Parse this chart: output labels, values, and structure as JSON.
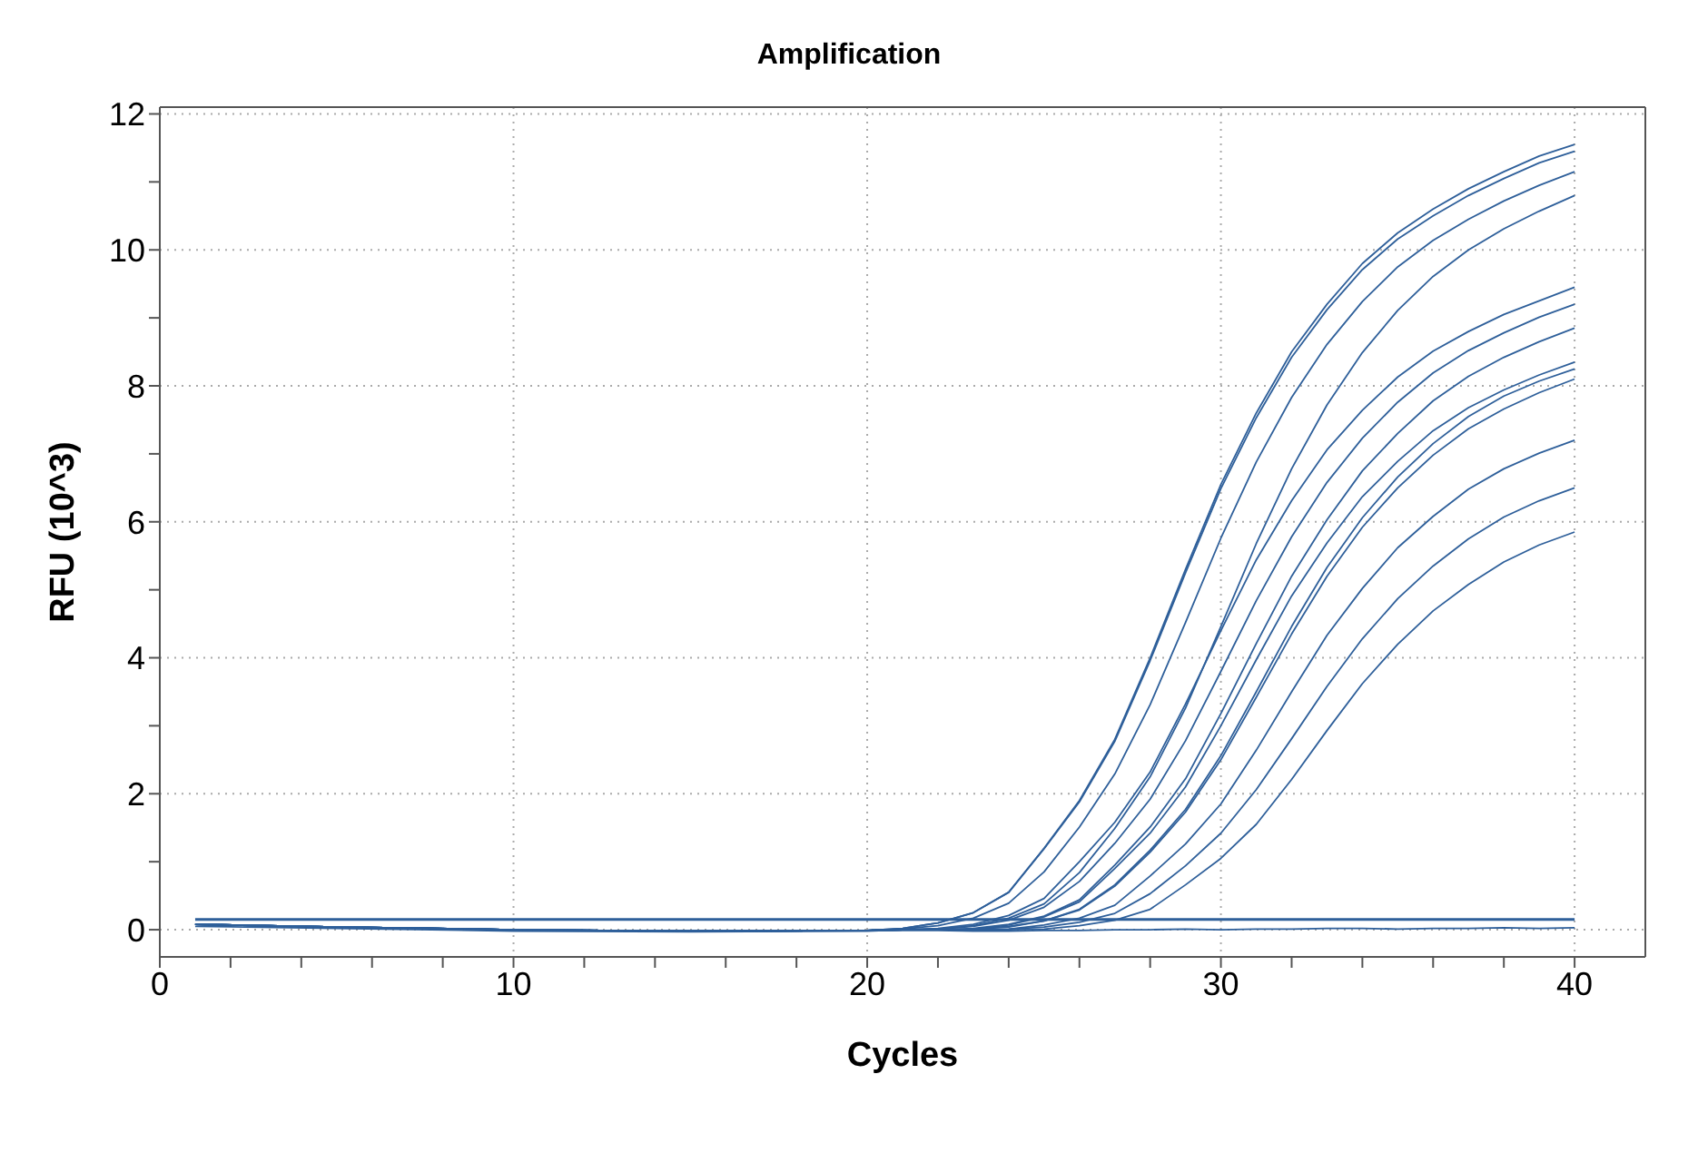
{
  "chart_data": {
    "type": "line",
    "title": "Amplification",
    "xlabel": "Cycles",
    "ylabel": "RFU (10^3)",
    "x": [
      1,
      5,
      10,
      15,
      20,
      21,
      22,
      23,
      24,
      25,
      26,
      27,
      28,
      29,
      30,
      31,
      32,
      33,
      34,
      35,
      36,
      37,
      38,
      39,
      40
    ],
    "xlim": [
      0,
      42
    ],
    "xticks": [
      0,
      {
        "value": 2,
        "label": null
      },
      {
        "value": 4,
        "label": null
      },
      {
        "value": 6,
        "label": null
      },
      {
        "value": 8,
        "label": null
      },
      10,
      {
        "value": 12,
        "label": null
      },
      {
        "value": 14,
        "label": null
      },
      {
        "value": 16,
        "label": null
      },
      {
        "value": 18,
        "label": null
      },
      20,
      {
        "value": 22,
        "label": null
      },
      {
        "value": 24,
        "label": null
      },
      {
        "value": 26,
        "label": null
      },
      {
        "value": 28,
        "label": null
      },
      30,
      {
        "value": 32,
        "label": null
      },
      {
        "value": 34,
        "label": null
      },
      {
        "value": 36,
        "label": null
      },
      {
        "value": 38,
        "label": null
      },
      40
    ],
    "ylim": [
      -0.4,
      12.1
    ],
    "yticks": [
      0,
      {
        "value": 1,
        "label": null
      },
      2,
      {
        "value": 3,
        "label": null
      },
      4,
      {
        "value": 5,
        "label": null
      },
      6,
      {
        "value": 7,
        "label": null
      },
      8,
      {
        "value": 9,
        "label": null
      },
      10,
      {
        "value": 11,
        "label": null
      },
      12
    ],
    "grid": true,
    "line_style": "solid",
    "ref_lines": [
      {
        "axis": "y",
        "value": 0.15,
        "color": "#2e5f9a"
      }
    ],
    "series": [
      {
        "color": "#2e5f9a",
        "values": [
          0.08,
          0.04,
          0.0,
          -0.02,
          -0.01,
          0.02,
          0.1,
          0.25,
          0.55,
          1.2,
          1.9,
          2.8,
          4.0,
          5.3,
          6.55,
          7.6,
          8.5,
          9.2,
          9.8,
          10.25,
          10.6,
          10.9,
          11.15,
          11.38,
          11.55
        ]
      },
      {
        "color": "#2e5f9a",
        "values": [
          0.08,
          0.04,
          0.0,
          -0.02,
          -0.01,
          0.02,
          0.1,
          0.25,
          0.55,
          1.19,
          1.88,
          2.77,
          3.96,
          5.25,
          6.49,
          7.53,
          8.42,
          9.12,
          9.71,
          10.16,
          10.5,
          10.8,
          11.05,
          11.28,
          11.45
        ]
      },
      {
        "color": "#2e5f9a",
        "values": [
          0.08,
          0.04,
          0.0,
          -0.02,
          -0.01,
          0.01,
          0.06,
          0.17,
          0.39,
          0.85,
          1.51,
          2.29,
          3.31,
          4.52,
          5.76,
          6.88,
          7.83,
          8.61,
          9.24,
          9.75,
          10.14,
          10.45,
          10.72,
          10.95,
          11.15
        ]
      },
      {
        "color": "#2e5f9a",
        "values": [
          0.08,
          0.04,
          0.0,
          -0.02,
          -0.01,
          0.0,
          0.01,
          0.06,
          0.17,
          0.38,
          0.84,
          1.49,
          2.25,
          3.26,
          4.46,
          5.68,
          6.78,
          7.72,
          8.49,
          9.11,
          9.61,
          10.0,
          10.31,
          10.57,
          10.8
        ]
      },
      {
        "color": "#2e5f9a",
        "values": [
          0.08,
          0.04,
          0.0,
          -0.02,
          -0.01,
          0.0,
          0.02,
          0.08,
          0.21,
          0.46,
          1.0,
          1.58,
          2.32,
          3.32,
          4.4,
          5.44,
          6.31,
          7.06,
          7.64,
          8.13,
          8.51,
          8.8,
          9.05,
          9.25,
          9.45
        ]
      },
      {
        "color": "#2e5f9a",
        "values": [
          0.08,
          0.04,
          0.0,
          -0.02,
          -0.01,
          0.0,
          0.01,
          0.05,
          0.14,
          0.33,
          0.71,
          1.27,
          1.92,
          2.78,
          3.8,
          4.84,
          5.78,
          6.58,
          7.23,
          7.76,
          8.19,
          8.52,
          8.78,
          9.01,
          9.2
        ]
      },
      {
        "color": "#2e5f9a",
        "values": [
          0.08,
          0.04,
          0.0,
          -0.02,
          -0.01,
          0.0,
          0.0,
          0.02,
          0.08,
          0.2,
          0.44,
          0.95,
          1.51,
          2.22,
          3.18,
          4.21,
          5.2,
          6.03,
          6.75,
          7.3,
          7.78,
          8.14,
          8.42,
          8.65,
          8.85
        ]
      },
      {
        "color": "#2e5f9a",
        "values": [
          0.08,
          0.04,
          0.0,
          -0.02,
          -0.01,
          0.0,
          0.0,
          0.01,
          0.07,
          0.19,
          0.41,
          0.9,
          1.42,
          2.1,
          3.0,
          3.97,
          4.91,
          5.69,
          6.37,
          6.89,
          7.34,
          7.68,
          7.94,
          8.16,
          8.35
        ]
      },
      {
        "color": "#2e5f9a",
        "values": [
          0.05,
          0.02,
          -0.02,
          -0.03,
          -0.02,
          0.0,
          0.0,
          0.01,
          0.05,
          0.13,
          0.3,
          0.66,
          1.17,
          1.77,
          2.56,
          3.5,
          4.46,
          5.33,
          6.06,
          6.66,
          7.15,
          7.55,
          7.85,
          8.07,
          8.25
        ]
      },
      {
        "color": "#2e5f9a",
        "values": [
          0.08,
          0.04,
          0.0,
          -0.02,
          -0.01,
          0.0,
          0.0,
          0.01,
          0.04,
          0.13,
          0.29,
          0.64,
          1.14,
          1.73,
          2.5,
          3.42,
          4.35,
          5.2,
          5.92,
          6.5,
          6.98,
          7.37,
          7.66,
          7.9,
          8.1
        ]
      },
      {
        "color": "#2e5f9a",
        "values": [
          0.08,
          0.04,
          0.0,
          -0.02,
          -0.01,
          0.0,
          0.0,
          0.0,
          0.01,
          0.07,
          0.17,
          0.36,
          0.79,
          1.26,
          1.85,
          2.64,
          3.5,
          4.33,
          5.02,
          5.62,
          6.08,
          6.48,
          6.78,
          7.01,
          7.2
        ]
      },
      {
        "color": "#2e5f9a",
        "values": [
          0.08,
          0.04,
          0.0,
          -0.02,
          -0.01,
          0.0,
          0.0,
          0.0,
          0.01,
          0.04,
          0.11,
          0.24,
          0.53,
          0.94,
          1.42,
          2.06,
          2.81,
          3.58,
          4.28,
          4.87,
          5.35,
          5.75,
          6.07,
          6.31,
          6.5
        ]
      },
      {
        "color": "#2e5f9a",
        "values": [
          0.08,
          0.04,
          0.0,
          -0.02,
          -0.01,
          0.0,
          0.0,
          0.0,
          0.0,
          0.01,
          0.06,
          0.14,
          0.3,
          0.66,
          1.05,
          1.55,
          2.21,
          2.93,
          3.62,
          4.2,
          4.69,
          5.08,
          5.41,
          5.66,
          5.85
        ]
      },
      {
        "color": "#2e5f9a",
        "values": [
          0.08,
          0.04,
          0.0,
          -0.02,
          -0.01,
          -0.01,
          -0.01,
          -0.02,
          -0.02,
          -0.01,
          -0.01,
          0.0,
          0.0,
          0.01,
          0.0,
          0.01,
          0.01,
          0.02,
          0.02,
          0.01,
          0.02,
          0.02,
          0.03,
          0.02,
          0.03
        ]
      }
    ]
  }
}
